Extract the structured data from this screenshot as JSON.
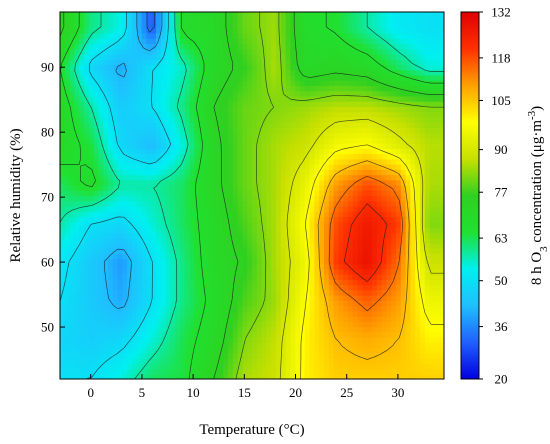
{
  "chart_data": {
    "type": "heatmap",
    "xlabel": "Temperature (°C)",
    "ylabel": "Relative humidity (%)",
    "xlim": [
      -3,
      34.5
    ],
    "ylim": [
      42,
      98.5
    ],
    "xticks": [
      "0",
      "5",
      "10",
      "15",
      "20",
      "25",
      "30"
    ],
    "yticks": [
      "50",
      "60",
      "70",
      "80",
      "90"
    ],
    "colorbar": {
      "label_prefix": "8 h O",
      "label_sub": "3",
      "label_mid": " concentration (μg·m",
      "label_sup": "-3",
      "label_suffix": ")",
      "ticks": [
        "20",
        "36",
        "50",
        "63",
        "77",
        "90",
        "105",
        "118",
        "132"
      ],
      "range": [
        20,
        132
      ],
      "colors": [
        "#0000e0",
        "#2060ff",
        "#1fbfff",
        "#00f0f0",
        "#20e030",
        "#30d020",
        "#c8e000",
        "#ffff00",
        "#ffa000",
        "#ff3000",
        "#e00000"
      ]
    },
    "x": [
      -3,
      0,
      3,
      6,
      9,
      12,
      15,
      18,
      21,
      24,
      27,
      30,
      33
    ],
    "y": [
      42,
      48,
      54,
      60,
      66,
      72,
      78,
      84,
      90,
      96
    ],
    "z": [
      [
        50,
        50,
        55,
        62,
        64,
        74,
        85,
        88,
        100,
        104,
        104,
        104,
        104
      ],
      [
        48,
        46,
        48,
        55,
        63,
        70,
        82,
        87,
        100,
        106,
        108,
        106,
        100
      ],
      [
        50,
        45,
        40,
        50,
        60,
        68,
        78,
        84,
        98,
        110,
        116,
        110,
        95
      ],
      [
        52,
        45,
        38,
        50,
        60,
        70,
        75,
        85,
        95,
        120,
        128,
        115,
        88
      ],
      [
        58,
        50,
        48,
        55,
        62,
        70,
        78,
        85,
        98,
        118,
        126,
        120,
        82
      ],
      [
        62,
        68,
        58,
        58,
        62,
        72,
        80,
        85,
        94,
        110,
        118,
        112,
        85
      ],
      [
        70,
        64,
        48,
        42,
        55,
        72,
        80,
        85,
        88,
        96,
        98,
        92,
        86
      ],
      [
        70,
        58,
        45,
        50,
        60,
        74,
        80,
        82,
        84,
        86,
        86,
        84,
        82
      ],
      [
        66,
        48,
        40,
        50,
        56,
        70,
        76,
        85,
        70,
        72,
        70,
        62,
        55
      ],
      [
        76,
        60,
        54,
        30,
        68,
        70,
        80,
        84,
        68,
        65,
        58,
        52,
        50
      ]
    ]
  }
}
